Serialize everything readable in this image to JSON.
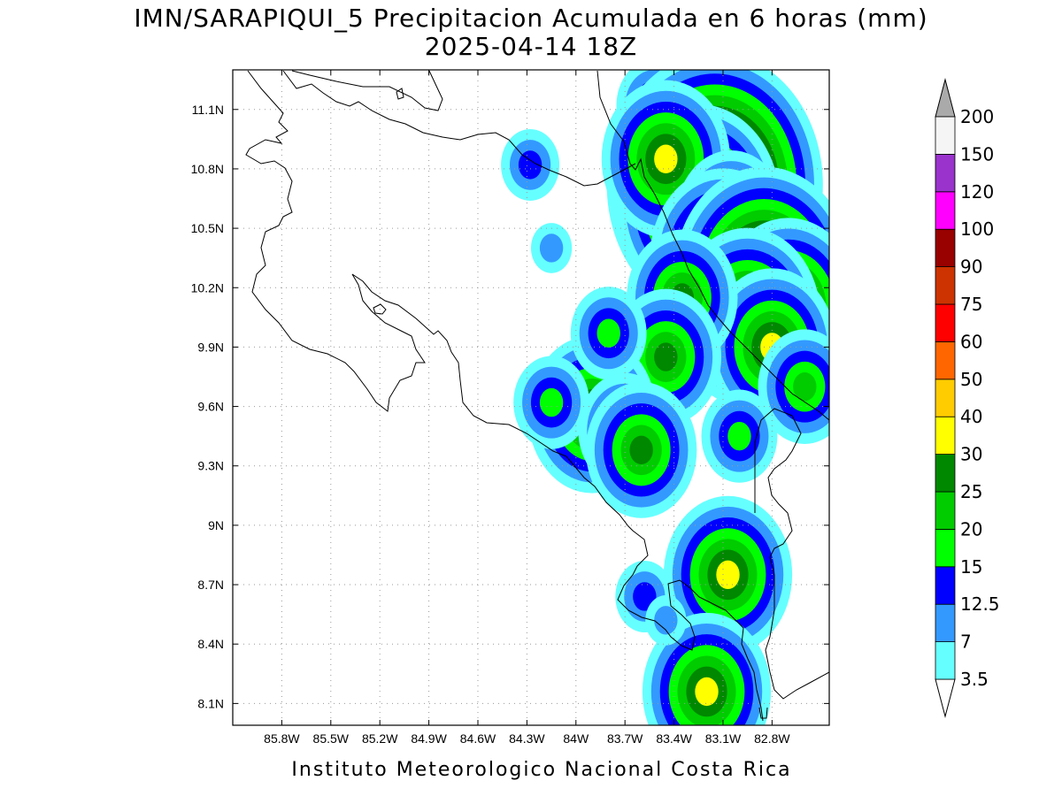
{
  "title": {
    "line1": "IMN/SARAPIQUI_5 Precipitacion Acumulada en 6 horas (mm)",
    "line2": "2025-04-14 18Z"
  },
  "footer": "Instituto Meteorologico Nacional Costa Rica",
  "map": {
    "lon_range": [
      -86.1,
      -82.45
    ],
    "lat_range": [
      7.99,
      11.3
    ],
    "lon_ticks": [
      -85.8,
      -85.5,
      -85.2,
      -84.9,
      -84.6,
      -84.3,
      -84.0,
      -83.7,
      -83.4,
      -83.1,
      -82.8
    ],
    "lon_tick_labels": [
      "85.8W",
      "85.5W",
      "85.2W",
      "84.9W",
      "84.6W",
      "84.3W",
      "84W",
      "83.7W",
      "83.4W",
      "83.1W",
      "82.8W"
    ],
    "lat_ticks": [
      11.1,
      10.8,
      10.5,
      10.2,
      9.9,
      9.6,
      9.3,
      9.0,
      8.7,
      8.4,
      8.1
    ],
    "lat_tick_labels": [
      "11.1N",
      "10.8N",
      "10.5N",
      "10.2N",
      "9.9N",
      "9.6N",
      "9.3N",
      "9N",
      "8.7N",
      "8.4N",
      "8.1N"
    ]
  },
  "colorbar": {
    "levels": [
      "3.5",
      "7",
      "12.5",
      "15",
      "20",
      "25",
      "30",
      "40",
      "50",
      "60",
      "75",
      "90",
      "100",
      "120",
      "150",
      "200"
    ],
    "colors": [
      "#66ffff",
      "#3399ff",
      "#0000ff",
      "#00ff00",
      "#00cc00",
      "#008800",
      "#ffff00",
      "#ffcc00",
      "#ff6600",
      "#ff0000",
      "#cc3300",
      "#990000",
      "#ff00ff",
      "#9933cc",
      "#f5f5f5"
    ],
    "over_color": "#aaaaaa",
    "under_color": "#ffffff"
  },
  "precip_cells": [
    {
      "lon": -83.52,
      "lat": 11.12,
      "level": 3
    },
    {
      "lon": -83.15,
      "lat": 10.72,
      "level": 11
    },
    {
      "lon": -83.25,
      "lat": 10.62,
      "level": 8
    },
    {
      "lon": -83.45,
      "lat": 10.85,
      "level": 6
    },
    {
      "lon": -83.05,
      "lat": 10.55,
      "level": 5
    },
    {
      "lon": -83.1,
      "lat": 10.35,
      "level": 7
    },
    {
      "lon": -82.85,
      "lat": 10.25,
      "level": 9
    },
    {
      "lon": -82.7,
      "lat": 10.1,
      "level": 7
    },
    {
      "lon": -82.95,
      "lat": 10.05,
      "level": 7
    },
    {
      "lon": -82.8,
      "lat": 9.9,
      "level": 6
    },
    {
      "lon": -83.35,
      "lat": 10.15,
      "level": 5
    },
    {
      "lon": -83.45,
      "lat": 9.85,
      "level": 5
    },
    {
      "lon": -82.6,
      "lat": 9.7,
      "level": 4
    },
    {
      "lon": -83.0,
      "lat": 9.45,
      "level": 3
    },
    {
      "lon": -84.28,
      "lat": 10.82,
      "level": 2
    },
    {
      "lon": -84.15,
      "lat": 10.4,
      "level": 1
    },
    {
      "lon": -83.9,
      "lat": 9.56,
      "level": 6
    },
    {
      "lon": -83.7,
      "lat": 9.48,
      "level": 4
    },
    {
      "lon": -83.6,
      "lat": 9.38,
      "level": 5
    },
    {
      "lon": -84.15,
      "lat": 9.62,
      "level": 3
    },
    {
      "lon": -83.8,
      "lat": 9.97,
      "level": 3
    },
    {
      "lon": -83.07,
      "lat": 8.75,
      "level": 6
    },
    {
      "lon": -83.2,
      "lat": 8.16,
      "level": 6
    },
    {
      "lon": -83.58,
      "lat": 8.64,
      "level": 2
    },
    {
      "lon": -83.45,
      "lat": 8.52,
      "level": 1
    }
  ]
}
